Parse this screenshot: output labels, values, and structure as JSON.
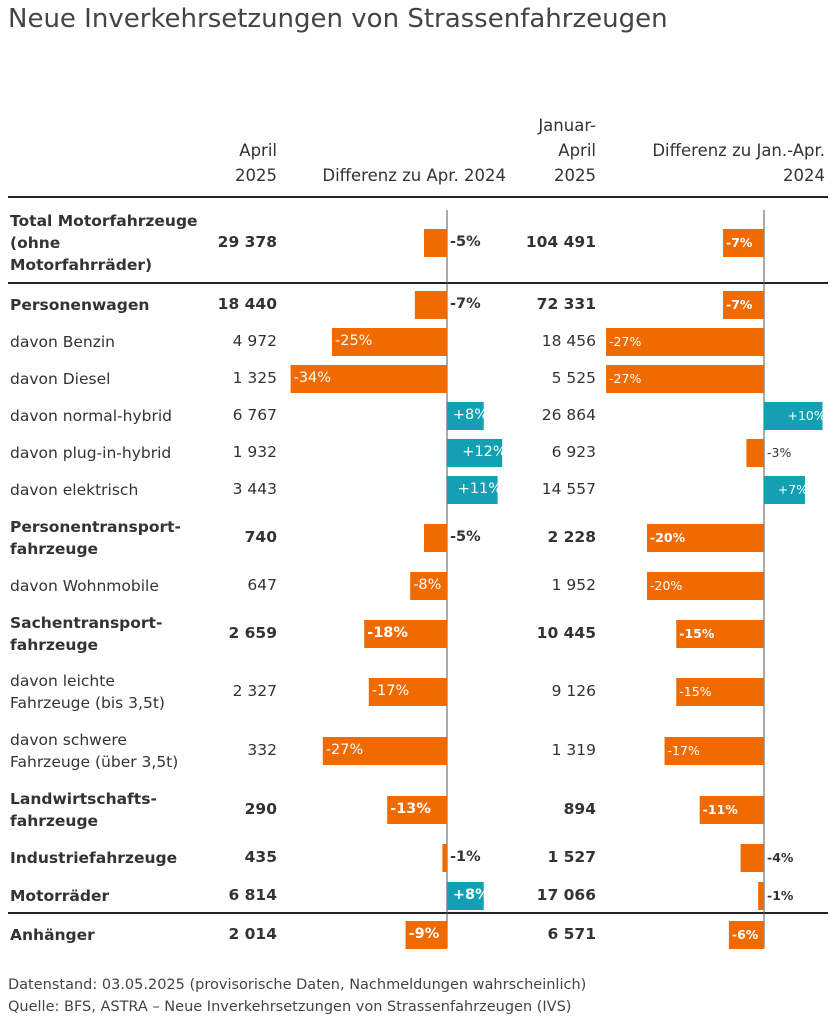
{
  "title": "Neue Inverkehrsetzungen von Strassenfahrzeugen",
  "headers": {
    "col1": [
      "April",
      "2025"
    ],
    "col2": "Differenz zu Apr. 2024",
    "col3": [
      "Januar-",
      "April",
      "2025"
    ],
    "col4": [
      "Differenz zu Jan.-Apr.",
      "2024"
    ]
  },
  "colors": {
    "negative": "#f06a00",
    "positive": "#14a0b4"
  },
  "chart_data": {
    "type": "table",
    "columns": [
      "April 2025",
      "Differenz zu Apr. 2024",
      "Januar-April 2025",
      "Differenz zu Jan.-Apr. 2024"
    ],
    "rows": [
      {
        "label": "Total Motorfahrzeuge (ohne Motorfahrräder)",
        "lines": [
          "Total Motorfahrzeuge",
          "(ohne",
          "Motorfahrräder)"
        ],
        "bold": true,
        "april": "29 378",
        "diff_april": -5,
        "diff_april_label": "-5%",
        "jan_apr": "104 491",
        "diff_jan_apr": -7,
        "diff_jan_apr_label": "-7%"
      },
      {
        "label": "Personenwagen",
        "lines": [
          "Personenwagen"
        ],
        "bold": true,
        "april": "18 440",
        "diff_april": -7,
        "diff_april_label": "-7%",
        "jan_apr": "72 331",
        "diff_jan_apr": -7,
        "diff_jan_apr_label": "-7%"
      },
      {
        "label": "davon Benzin",
        "lines": [
          "davon Benzin"
        ],
        "bold": false,
        "april": "4 972",
        "diff_april": -25,
        "diff_april_label": "-25%",
        "jan_apr": "18 456",
        "diff_jan_apr": -27,
        "diff_jan_apr_label": "-27%"
      },
      {
        "label": "davon Diesel",
        "lines": [
          "davon Diesel"
        ],
        "bold": false,
        "april": "1 325",
        "diff_april": -34,
        "diff_april_label": "-34%",
        "jan_apr": "5 525",
        "diff_jan_apr": -27,
        "diff_jan_apr_label": "-27%"
      },
      {
        "label": "davon normal-hybrid",
        "lines": [
          "davon normal-hybrid"
        ],
        "bold": false,
        "april": "6 767",
        "diff_april": 8,
        "diff_april_label": "+8%",
        "jan_apr": "26 864",
        "diff_jan_apr": 10,
        "diff_jan_apr_label": "+10%"
      },
      {
        "label": "davon plug-in-hybrid",
        "lines": [
          "davon plug-in-hybrid"
        ],
        "bold": false,
        "april": "1 932",
        "diff_april": 12,
        "diff_april_label": "+12%",
        "jan_apr": "6 923",
        "diff_jan_apr": -3,
        "diff_jan_apr_label": "-3%"
      },
      {
        "label": "davon elektrisch",
        "lines": [
          "davon elektrisch"
        ],
        "bold": false,
        "april": "3 443",
        "diff_april": 11,
        "diff_april_label": "+11%",
        "jan_apr": "14 557",
        "diff_jan_apr": 7,
        "diff_jan_apr_label": "+7%"
      },
      {
        "label": "Personentransportfahrzeuge",
        "lines": [
          "Personentransport-",
          "fahrzeuge"
        ],
        "bold": true,
        "april": "740",
        "diff_april": -5,
        "diff_april_label": "-5%",
        "jan_apr": "2 228",
        "diff_jan_apr": -20,
        "diff_jan_apr_label": "-20%"
      },
      {
        "label": "davon Wohnmobile",
        "lines": [
          "davon Wohnmobile"
        ],
        "bold": false,
        "april": "647",
        "diff_april": -8,
        "diff_april_label": "-8%",
        "jan_apr": "1 952",
        "diff_jan_apr": -20,
        "diff_jan_apr_label": "-20%"
      },
      {
        "label": "Sachentransportfahrzeuge",
        "lines": [
          "Sachentransport-",
          "fahrzeuge"
        ],
        "bold": true,
        "april": "2 659",
        "diff_april": -18,
        "diff_april_label": "-18%",
        "jan_apr": "10 445",
        "diff_jan_apr": -15,
        "diff_jan_apr_label": "-15%"
      },
      {
        "label": "davon leichte Fahrzeuge (bis 3,5t)",
        "lines": [
          "davon leichte",
          "Fahrzeuge (bis 3,5t)"
        ],
        "bold": false,
        "april": "2 327",
        "diff_april": -17,
        "diff_april_label": "-17%",
        "jan_apr": "9 126",
        "diff_jan_apr": -15,
        "diff_jan_apr_label": "-15%"
      },
      {
        "label": "davon schwere Fahrzeuge (über 3,5t)",
        "lines": [
          "davon schwere",
          "Fahrzeuge (über 3,5t)"
        ],
        "bold": false,
        "april": "332",
        "diff_april": -27,
        "diff_april_label": "-27%",
        "jan_apr": "1 319",
        "diff_jan_apr": -17,
        "diff_jan_apr_label": "-17%"
      },
      {
        "label": "Landwirtschaftsfahrzeuge",
        "lines": [
          "Landwirtschafts-",
          "fahrzeuge"
        ],
        "bold": true,
        "april": "290",
        "diff_april": -13,
        "diff_april_label": "-13%",
        "jan_apr": "894",
        "diff_jan_apr": -11,
        "diff_jan_apr_label": "-11%"
      },
      {
        "label": "Industriefahrzeuge",
        "lines": [
          "Industriefahrzeuge"
        ],
        "bold": true,
        "april": "435",
        "diff_april": -1,
        "diff_april_label": "-1%",
        "jan_apr": "1 527",
        "diff_jan_apr": -4,
        "diff_jan_apr_label": "-4%"
      },
      {
        "label": "Motorräder",
        "lines": [
          "Motorräder"
        ],
        "bold": true,
        "april": "6 814",
        "diff_april": 8,
        "diff_april_label": "+8%",
        "jan_apr": "17 066",
        "diff_jan_apr": -1,
        "diff_jan_apr_label": "-1%"
      },
      {
        "label": "Anhänger",
        "lines": [
          "Anhänger"
        ],
        "bold": true,
        "april": "2 014",
        "diff_april": -9,
        "diff_april_label": "-9%",
        "jan_apr": "6 571",
        "diff_jan_apr": -6,
        "diff_jan_apr_label": "-6%"
      }
    ]
  },
  "notes": [
    "Datenstand: 03.05.2025 (provisorische Daten, Nachmeldungen wahrscheinlich)",
    "Quelle: BFS, ASTRA – Neue Inverkehrsetzungen von Strassenfahrzeugen (IVS)"
  ]
}
